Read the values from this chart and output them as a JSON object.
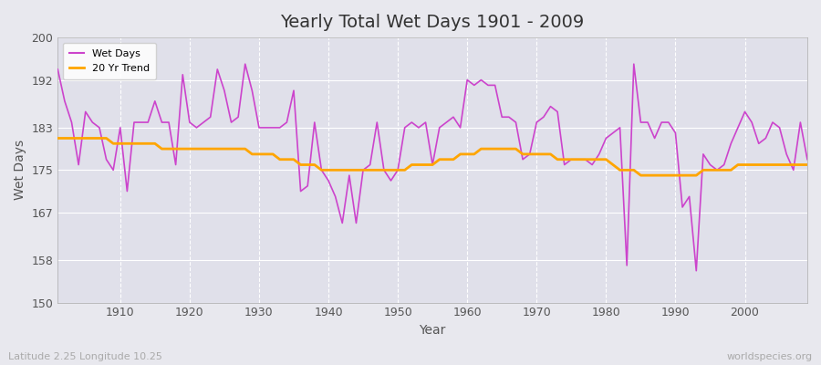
{
  "title": "Yearly Total Wet Days 1901 - 2009",
  "xlabel": "Year",
  "ylabel": "Wet Days",
  "subtitle": "Latitude 2.25 Longitude 10.25",
  "watermark": "worldspecies.org",
  "ylim": [
    150,
    200
  ],
  "yticks": [
    150,
    158,
    167,
    175,
    183,
    192,
    200
  ],
  "xticks": [
    1910,
    1920,
    1930,
    1940,
    1950,
    1960,
    1970,
    1980,
    1990,
    2000
  ],
  "line_color": "#CC44CC",
  "trend_color": "#FFA500",
  "fig_bg": "#E8E8EE",
  "plot_bg": "#E0E0EA",
  "years": [
    1901,
    1902,
    1903,
    1904,
    1905,
    1906,
    1907,
    1908,
    1909,
    1910,
    1911,
    1912,
    1913,
    1914,
    1915,
    1916,
    1917,
    1918,
    1919,
    1920,
    1921,
    1922,
    1923,
    1924,
    1925,
    1926,
    1927,
    1928,
    1929,
    1930,
    1931,
    1932,
    1933,
    1934,
    1935,
    1936,
    1937,
    1938,
    1939,
    1940,
    1941,
    1942,
    1943,
    1944,
    1945,
    1946,
    1947,
    1948,
    1949,
    1950,
    1951,
    1952,
    1953,
    1954,
    1955,
    1956,
    1957,
    1958,
    1959,
    1960,
    1961,
    1962,
    1963,
    1964,
    1965,
    1966,
    1967,
    1968,
    1969,
    1970,
    1971,
    1972,
    1973,
    1974,
    1975,
    1976,
    1977,
    1978,
    1979,
    1980,
    1981,
    1982,
    1983,
    1984,
    1985,
    1986,
    1987,
    1988,
    1989,
    1990,
    1991,
    1992,
    1993,
    1994,
    1995,
    1996,
    1997,
    1998,
    1999,
    2000,
    2001,
    2002,
    2003,
    2004,
    2005,
    2006,
    2007,
    2008,
    2009
  ],
  "wet_days": [
    194,
    188,
    184,
    176,
    186,
    184,
    183,
    177,
    175,
    183,
    171,
    184,
    184,
    184,
    188,
    184,
    184,
    176,
    193,
    184,
    183,
    184,
    185,
    194,
    190,
    184,
    185,
    195,
    190,
    183,
    183,
    183,
    183,
    184,
    190,
    171,
    172,
    184,
    175,
    173,
    170,
    165,
    174,
    165,
    175,
    176,
    184,
    175,
    173,
    175,
    183,
    184,
    183,
    184,
    176,
    183,
    184,
    185,
    183,
    192,
    191,
    192,
    191,
    191,
    185,
    185,
    184,
    177,
    178,
    184,
    185,
    187,
    186,
    176,
    177,
    177,
    177,
    176,
    178,
    181,
    182,
    183,
    157,
    195,
    184,
    184,
    181,
    184,
    184,
    182,
    168,
    170,
    156,
    178,
    176,
    175,
    176,
    180,
    183,
    186,
    184,
    180,
    181,
    184,
    183,
    178,
    175,
    184,
    177
  ],
  "trend": [
    181,
    181,
    181,
    181,
    181,
    181,
    181,
    181,
    180,
    180,
    180,
    180,
    180,
    180,
    180,
    179,
    179,
    179,
    179,
    179,
    179,
    179,
    179,
    179,
    179,
    179,
    179,
    179,
    178,
    178,
    178,
    178,
    177,
    177,
    177,
    176,
    176,
    176,
    175,
    175,
    175,
    175,
    175,
    175,
    175,
    175,
    175,
    175,
    175,
    175,
    175,
    176,
    176,
    176,
    176,
    177,
    177,
    177,
    178,
    178,
    178,
    179,
    179,
    179,
    179,
    179,
    179,
    178,
    178,
    178,
    178,
    178,
    177,
    177,
    177,
    177,
    177,
    177,
    177,
    177,
    176,
    175,
    175,
    175,
    174,
    174,
    174,
    174,
    174,
    174,
    174,
    174,
    174,
    175,
    175,
    175,
    175,
    175,
    176,
    176,
    176,
    176,
    176,
    176,
    176,
    176,
    176,
    176,
    176
  ]
}
